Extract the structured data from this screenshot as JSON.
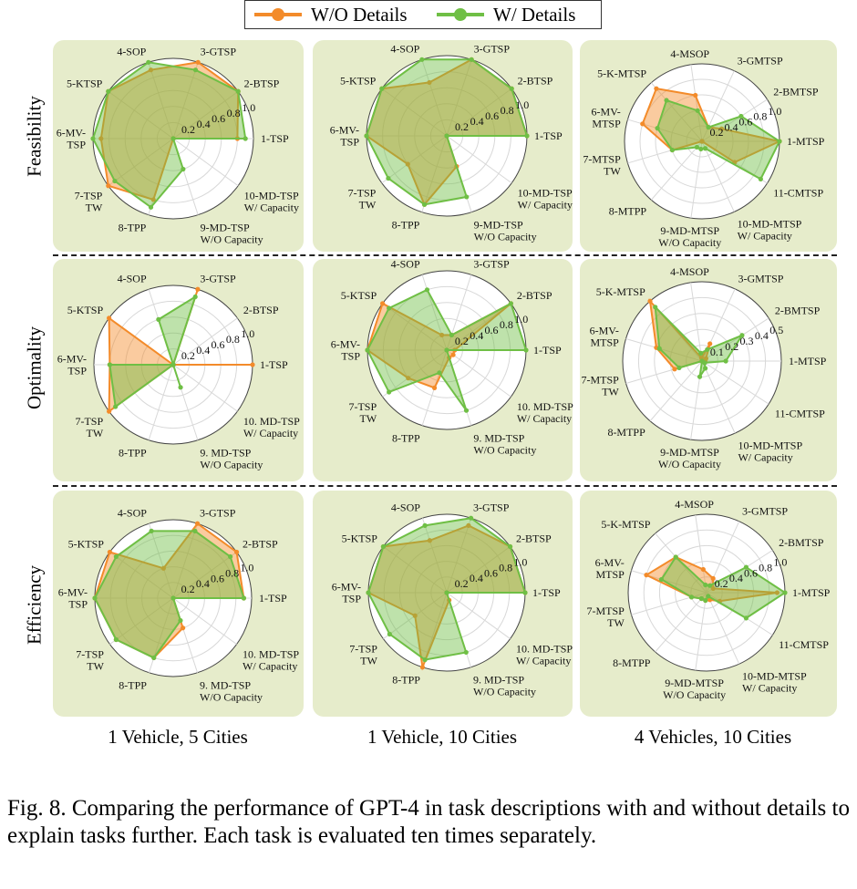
{
  "legend": {
    "series": [
      {
        "name": "W/O Details",
        "color": "#f38b2a"
      },
      {
        "name": "W/ Details",
        "color": "#6fbf45"
      }
    ]
  },
  "row_labels": [
    "Feasibility",
    "Optimality",
    "Efficiency"
  ],
  "column_labels": [
    "1 Vehicle, 5 Cities",
    "1 Vehicle, 10 Cities",
    "4 Vehicles, 10 Cities"
  ],
  "caption": "Fig. 8.   Comparing the performance of GPT-4 in task descriptions with and without details to explain tasks further. Each task is evaluated ten times separately.",
  "chart_data": [
    {
      "type": "radar",
      "row": "Feasibility",
      "column": "1 Vehicle, 5 Cities",
      "categories": [
        "1-TSP",
        "2-BTSP",
        "3-GTSP",
        "4-SOP",
        "5-KTSP",
        "6-MV-\nTSP",
        "7-TSP\nTW",
        "8-TPP",
        "9-MD-TSP\nW/O Capacity",
        "10-MD-TSP\nW/ Capacity"
      ],
      "tick_labels": [
        "0.2",
        "0.4",
        "0.6",
        "0.8",
        "1.0"
      ],
      "rmax": 1.0,
      "series": [
        {
          "name": "W/O Details",
          "values": [
            0.8,
            1.0,
            1.0,
            0.9,
            1.0,
            0.9,
            1.0,
            0.8,
            0,
            0
          ]
        },
        {
          "name": "W/ Details",
          "values": [
            0.9,
            1.0,
            0.9,
            1.0,
            1.0,
            1.0,
            0.9,
            0.9,
            0.4,
            0
          ]
        }
      ]
    },
    {
      "type": "radar",
      "row": "Feasibility",
      "column": "1 Vehicle, 10 Cities",
      "categories": [
        "1-TSP",
        "2-BTSP",
        "3-GTSP",
        "4-SOP",
        "5-KTSP",
        "6-MV-\nTSP",
        "7-TSP\nTW",
        "8-TPP",
        "9-MD-TSP\nW/O Capacity",
        "10-MD-TSP\nW/ Capacity"
      ],
      "tick_labels": [
        "0.2",
        "0.4",
        "0.6",
        "0.8",
        "1.0"
      ],
      "rmax": 1.0,
      "series": [
        {
          "name": "W/O Details",
          "values": [
            1.0,
            1.0,
            1.0,
            0.7,
            1.0,
            1.0,
            0.6,
            0.9,
            0.4,
            0
          ]
        },
        {
          "name": "W/ Details",
          "values": [
            1.0,
            1.0,
            1.0,
            1.0,
            1.0,
            1.0,
            0.9,
            0.9,
            0.8,
            0
          ]
        }
      ]
    },
    {
      "type": "radar",
      "row": "Feasibility",
      "column": "4 Vehicles, 10 Cities",
      "categories": [
        "1-MTSP",
        "2-BMTSP",
        "3-GMTSP",
        "4-MSOP",
        "5-K-MTSP",
        "6-MV-\nMTSP",
        "7-MTSP\nTW",
        "8-MTPP",
        "9-MD-MTSP\nW/O Capacity",
        "10-MD-MTSP\nW/ Capacity",
        "11-CMTSP"
      ],
      "tick_labels": [
        "0.2",
        "0.4",
        "0.6",
        "0.8",
        "1.0"
      ],
      "rmax": 1.0,
      "series": [
        {
          "name": "W/O Details",
          "values": [
            1.0,
            0.3,
            0.2,
            0.6,
            0.9,
            0.8,
            0.4,
            0,
            0,
            0,
            0.5
          ]
        },
        {
          "name": "W/ Details",
          "values": [
            1.0,
            0.6,
            0.2,
            0.4,
            0.7,
            0.6,
            0.4,
            0.1,
            0.1,
            0.1,
            0.9
          ]
        }
      ]
    },
    {
      "type": "radar",
      "row": "Optimality",
      "column": "1 Vehicle, 5 Cities",
      "categories": [
        "1-TSP",
        "2-BTSP",
        "3-GTSP",
        "4-SOP",
        "5-KTSP",
        "6-MV-\nTSP",
        "7-TSP\nTW",
        "8-TPP",
        "9. MD-TSP\nW/O Capacity",
        "10. MD-TSP\nW/ Capacity"
      ],
      "tick_labels": [
        "0.2",
        "0.4",
        "0.6",
        "0.8",
        "1.0"
      ],
      "rmax": 1.0,
      "series": [
        {
          "name": "W/O Details",
          "values": [
            1.0,
            0,
            1.0,
            0,
            1.0,
            0.8,
            1.0,
            0,
            0,
            0
          ]
        },
        {
          "name": "W/ Details",
          "values": [
            0,
            0,
            0.9,
            0.6,
            0,
            0.8,
            0.9,
            0,
            0.3,
            0
          ]
        }
      ]
    },
    {
      "type": "radar",
      "row": "Optimality",
      "column": "1 Vehicle, 10 Cities",
      "categories": [
        "1-TSP",
        "2-BTSP",
        "3-GTSP",
        "4-SOP",
        "5-KTSP",
        "6-MV-\nTSP",
        "7-TSP\nTW",
        "8-TPP",
        "9. MD-TSP\nW/O Capacity",
        "10. MD-TSP\nW/ Capacity"
      ],
      "tick_labels": [
        "0.2",
        "0.4",
        "0.6",
        "0.8",
        "1.0"
      ],
      "rmax": 1.0,
      "series": [
        {
          "name": "W/O Details",
          "values": [
            0.1,
            1.0,
            0.2,
            0.2,
            1.0,
            1.0,
            0.6,
            0.5,
            0.1,
            0.1
          ]
        },
        {
          "name": "W/ Details",
          "values": [
            1.0,
            1.0,
            0.2,
            0.8,
            0.9,
            1.0,
            0.9,
            0.3,
            0.8,
            0
          ]
        }
      ]
    },
    {
      "type": "radar",
      "row": "Optimality",
      "column": "4 Vehicles, 10 Cities",
      "categories": [
        "1-MTSP",
        "2-BMTSP",
        "3-GMTSP",
        "4-MSOP",
        "5-K-MTSP",
        "6-MV-\nMTSP",
        "7-MTSP\nTW",
        "8-MTPP",
        "9-MD-MTSP\nW/O Capacity",
        "10-MD-MTSP\nW/ Capacity",
        "11-CMTSP"
      ],
      "tick_labels": [
        "0.1",
        "0.2",
        "0.3",
        "0.4",
        "0.5"
      ],
      "rmax": 0.5,
      "series": [
        {
          "name": "W/O Details",
          "values": [
            0.02,
            0.03,
            0.12,
            0.02,
            0.5,
            0.3,
            0.18,
            0,
            0,
            0,
            0
          ]
        },
        {
          "name": "W/ Details",
          "values": [
            0.15,
            0.3,
            0.08,
            0.05,
            0.45,
            0.28,
            0.15,
            0,
            0.1,
            0.05,
            0.02
          ]
        }
      ]
    },
    {
      "type": "radar",
      "row": "Efficiency",
      "column": "1 Vehicle, 5 Cities",
      "categories": [
        "1-TSP",
        "2-BTSP",
        "3-GTSP",
        "4-SOP",
        "5-KTSP",
        "6-MV-\nTSP",
        "7-TSP\nTW",
        "8-TPP",
        "9. MD-TSP\nW/O Capacity",
        "10. MD-TSP\nW/ Capacity"
      ],
      "tick_labels": [
        "0.2",
        "0.4",
        "0.6",
        "0.8",
        "1.0"
      ],
      "rmax": 1.0,
      "series": [
        {
          "name": "W/O Details",
          "values": [
            0.9,
            1.0,
            1.0,
            0.4,
            1.0,
            1.0,
            0.9,
            0.8,
            0.4,
            0
          ]
        },
        {
          "name": "W/ Details",
          "values": [
            0.9,
            0.9,
            0.9,
            0.9,
            0.9,
            1.0,
            0.9,
            0.8,
            0.3,
            0
          ]
        }
      ]
    },
    {
      "type": "radar",
      "row": "Efficiency",
      "column": "1 Vehicle, 10 Cities",
      "categories": [
        "1-TSP",
        "2-BTSP",
        "3-GTSP",
        "4-SOP",
        "5-KTSP",
        "6-MV-\nTSP",
        "7-TSP\nTW",
        "8-TPP",
        "9. MD-TSP\nW/O Capacity",
        "10. MD-TSP\nW/ Capacity"
      ],
      "tick_labels": [
        "0.2",
        "0.4",
        "0.6",
        "0.8",
        "1.0"
      ],
      "rmax": 1.0,
      "series": [
        {
          "name": "W/O Details",
          "values": [
            1.0,
            1.0,
            0.9,
            0.7,
            1.0,
            1.0,
            0.5,
            1.0,
            0.1,
            0
          ]
        },
        {
          "name": "W/ Details",
          "values": [
            1.0,
            1.0,
            1.0,
            0.9,
            1.0,
            1.0,
            0.9,
            0.9,
            0.8,
            0
          ]
        }
      ]
    },
    {
      "type": "radar",
      "row": "Efficiency",
      "column": "4 Vehicles, 10 Cities",
      "categories": [
        "1-MTSP",
        "2-BMTSP",
        "3-GMTSP",
        "4-MSOP",
        "5-K-MTSP",
        "6-MV-\nMTSP",
        "7-MTSP\nTW",
        "8-MTPP",
        "9-MD-MTSP\nW/O Capacity",
        "10-MD-MTSP\nW/ Capacity",
        "11-CMTSP"
      ],
      "tick_labels": [
        "0.2",
        "0.4",
        "0.6",
        "0.8",
        "1.0"
      ],
      "rmax": 1.0,
      "series": [
        {
          "name": "W/O Details",
          "values": [
            0.9,
            0.1,
            0.2,
            0.3,
            0.6,
            0.8,
            0.2,
            0.1,
            0.1,
            0.1,
            0.2
          ]
        },
        {
          "name": "W/ Details",
          "values": [
            1.0,
            0.6,
            0.1,
            0.1,
            0.6,
            0.6,
            0.2,
            0.1,
            0.1,
            0.05,
            0.6
          ]
        }
      ]
    }
  ]
}
